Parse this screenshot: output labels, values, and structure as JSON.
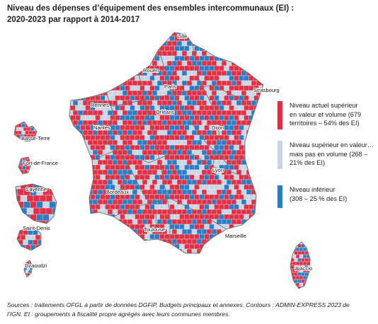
{
  "title": {
    "line1": "Niveau des dépenses d’équipement des ensembles intercommunaux (EI) :",
    "line2": "2020-2023 par rapport à 2014-2017"
  },
  "legend": [
    {
      "lines": [
        "Niveau actuel supérieur",
        "en valeur et volume (679",
        "territoires – 54% des EI)"
      ],
      "color": "#e03046"
    },
    {
      "lines": [
        "Niveau supérieur en valeur…",
        "mais pas en volume (268 –",
        "21% des EI)"
      ],
      "color": "#c9d5e3"
    },
    {
      "lines": [
        "Niveau inférieur",
        "(308 – 25 % des EI)"
      ],
      "color": "#2b7cc6"
    }
  ],
  "cities": {
    "lille": "Lille",
    "rouen": "Rouen",
    "paris": "Paris",
    "strasbourg": "Strasbourg",
    "rennes": "Rennes",
    "orleans": "Orléans",
    "nantes": "Nantes",
    "dijon": "Dijon",
    "lyon": "Lyon",
    "bordeaux": "Bordeaux",
    "toulouse": "Toulouse",
    "marseille": "Marseille",
    "ajaccio": "Ajaccio",
    "basse_terre": "Basse-Terre",
    "fort_de_france": "Fort-de-France",
    "cayenne": "Cayenne",
    "saint_denis": "Saint-Denis",
    "dzaoudzi": "Dzaoudzi"
  },
  "sources": {
    "line1": "Sources : traitements OFGL à partir de données DGFiP, Budgets principaux et annexes. Contours : ADMIN-EXPRESS 2023 de",
    "line2": "l’IGN. EI : groupements à fiscalité propre agrégés avec leurs communes membres."
  },
  "colors": {
    "red": "#e03046",
    "light": "#c9d5e3",
    "blue": "#2b7cc6",
    "border": "#6f6f6f"
  }
}
